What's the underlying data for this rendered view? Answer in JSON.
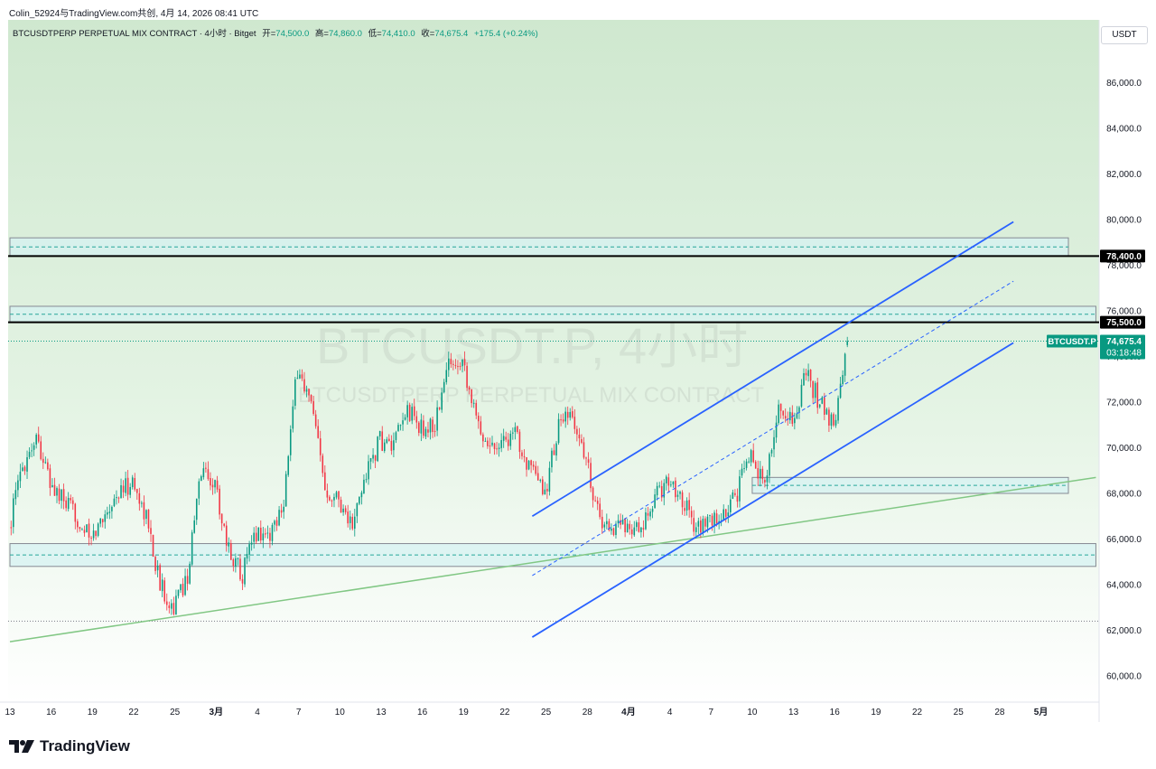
{
  "header": {
    "author": "Colin_52924与TradingView.com共创",
    "date": "4月 14, 2026 08:41 UTC"
  },
  "legend": {
    "symbol": "BTCUSDTPERP PERPETUAL MIX CONTRACT · 4小时 · Bitget",
    "open_label": "开=",
    "open": "74,500.0",
    "high_label": "高=",
    "high": "74,860.0",
    "low_label": "低=",
    "low": "74,410.0",
    "close_label": "收=",
    "close": "74,675.4",
    "change": "+175.4 (+0.24%)"
  },
  "currency": "USDT",
  "watermark": {
    "ticker": "BTCUSDT.P, 4小时",
    "description": "BTCUSDTPERP PERPETUAL MIX CONTRACT"
  },
  "brand": {
    "name": "TradingView"
  },
  "colors": {
    "up": "#089981",
    "down": "#f23645",
    "channel": "#2962ff",
    "trend": "#81c784",
    "zone_fill": "#d6f1f1",
    "zone_border": "#868993",
    "bg_top": "#cfe8cf"
  },
  "chart_data": {
    "type": "candlestick",
    "timeframe": "4小时",
    "ylim": [
      59000,
      88000
    ],
    "y_ticks": [
      "60,000.0",
      "62,000.0",
      "64,000.0",
      "66,000.0",
      "68,000.0",
      "70,000.0",
      "72,000.0",
      "74,000.0",
      "76,000.0",
      "78,000.0",
      "80,000.0",
      "82,000.0",
      "84,000.0",
      "86,000.0"
    ],
    "x_ticks": [
      "13",
      "16",
      "19",
      "22",
      "25",
      "3月",
      "4",
      "7",
      "10",
      "13",
      "16",
      "19",
      "22",
      "25",
      "28",
      "4月",
      "4",
      "7",
      "10",
      "13",
      "16",
      "19",
      "22",
      "25",
      "28",
      "5月"
    ],
    "x_start": "2026-02-13",
    "bars_per_day": 6,
    "price_labels": [
      {
        "value": 78400,
        "text": "78,400.0"
      },
      {
        "value": 75500,
        "text": "75,500.0"
      }
    ],
    "last_price": {
      "symbol": "BTCUSDT.P",
      "value": 74675.4,
      "text": "74,675.4",
      "countdown": "03:18:48"
    },
    "horizontal_lines": [
      78400,
      75500
    ],
    "zones": [
      {
        "from": "2026-02-13",
        "to": "2026-05-01",
        "low": 78400,
        "high": 79200
      },
      {
        "from": "2026-02-13",
        "to": "2026-05-03",
        "low": 75500,
        "high": 76200
      },
      {
        "from": "2026-04-08",
        "to": "2026-05-01",
        "low": 68000,
        "high": 68700
      },
      {
        "from": "2026-02-13",
        "to": "2026-05-03",
        "low": 64800,
        "high": 65800
      }
    ],
    "channel": {
      "upper": [
        [
          "2026-03-23",
          67000
        ],
        [
          "2026-04-27",
          79900
        ]
      ],
      "middle": [
        [
          "2026-03-23",
          64400
        ],
        [
          "2026-04-27",
          77300
        ]
      ],
      "lower": [
        [
          "2026-03-23",
          61700
        ],
        [
          "2026-04-27",
          74600
        ]
      ]
    },
    "trendline": [
      [
        "2026-02-13",
        61500
      ],
      [
        "2026-05-03",
        68700
      ]
    ],
    "path": [
      [
        "2026-02-13",
        66500
      ],
      [
        "2026-02-14",
        69200
      ],
      [
        "2026-02-15",
        70600
      ],
      [
        "2026-02-16",
        68400
      ],
      [
        "2026-02-17",
        67600
      ],
      [
        "2026-02-18",
        66900
      ],
      [
        "2026-02-19",
        65900
      ],
      [
        "2026-02-20",
        67200
      ],
      [
        "2026-02-21",
        68000
      ],
      [
        "2026-02-22",
        68500
      ],
      [
        "2026-02-23",
        67000
      ],
      [
        "2026-02-24",
        64000
      ],
      [
        "2026-02-25",
        63000
      ],
      [
        "2026-02-26",
        64400
      ],
      [
        "2026-02-27",
        69100
      ],
      [
        "2026-02-28",
        68400
      ],
      [
        "2026-03-01",
        65500
      ],
      [
        "2026-03-02",
        64500
      ],
      [
        "2026-03-03",
        66300
      ],
      [
        "2026-03-04",
        66200
      ],
      [
        "2026-03-05",
        67800
      ],
      [
        "2026-03-06",
        73500
      ],
      [
        "2026-03-07",
        71800
      ],
      [
        "2026-03-08",
        68300
      ],
      [
        "2026-03-09",
        67800
      ],
      [
        "2026-03-10",
        66500
      ],
      [
        "2026-03-11",
        68900
      ],
      [
        "2026-03-12",
        70300
      ],
      [
        "2026-03-13",
        70000
      ],
      [
        "2026-03-14",
        71700
      ],
      [
        "2026-03-15",
        70800
      ],
      [
        "2026-03-16",
        71000
      ],
      [
        "2026-03-17",
        73700
      ],
      [
        "2026-03-18",
        74000
      ],
      [
        "2026-03-19",
        71200
      ],
      [
        "2026-03-20",
        70100
      ],
      [
        "2026-03-21",
        70400
      ],
      [
        "2026-03-22",
        70500
      ],
      [
        "2026-03-23",
        68900
      ],
      [
        "2026-03-24",
        68000
      ],
      [
        "2026-03-25",
        71000
      ],
      [
        "2026-03-26",
        71300
      ],
      [
        "2026-03-27",
        69500
      ],
      [
        "2026-03-28",
        66800
      ],
      [
        "2026-03-29",
        66500
      ],
      [
        "2026-03-30",
        66700
      ],
      [
        "2026-03-31",
        66200
      ],
      [
        "2026-04-01",
        67800
      ],
      [
        "2026-04-02",
        68600
      ],
      [
        "2026-04-03",
        67800
      ],
      [
        "2026-04-04",
        66500
      ],
      [
        "2026-04-05",
        66700
      ],
      [
        "2026-04-06",
        67000
      ],
      [
        "2026-04-07",
        68000
      ],
      [
        "2026-04-08",
        70000
      ],
      [
        "2026-04-09",
        68200
      ],
      [
        "2026-04-10",
        71800
      ],
      [
        "2026-04-11",
        71100
      ],
      [
        "2026-04-12",
        73200
      ],
      [
        "2026-04-13",
        72000
      ],
      [
        "2026-04-14",
        70900
      ],
      [
        "2026-04-15",
        74675
      ]
    ]
  }
}
